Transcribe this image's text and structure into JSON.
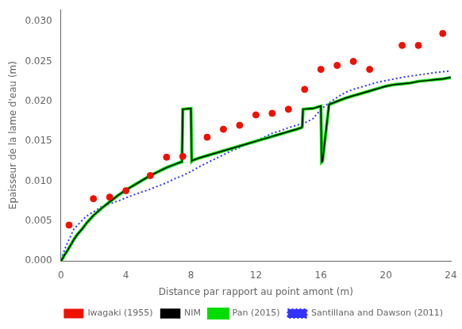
{
  "chart_data": {
    "type": "line",
    "xlabel": "Distance par rapport au point amont (m)",
    "ylabel": "Epaisseur de la lame d'eau (m)",
    "xlim": [
      0,
      24
    ],
    "ylim": [
      0.0,
      0.0315
    ],
    "xticks": [
      0,
      4,
      8,
      12,
      16,
      20,
      24
    ],
    "yticks": [
      {
        "value": 0.0,
        "label": "0.000"
      },
      {
        "value": 0.005,
        "label": "0.005"
      },
      {
        "value": 0.01,
        "label": "0.010"
      },
      {
        "value": 0.015,
        "label": "0.015"
      },
      {
        "value": 0.02,
        "label": "0.020"
      },
      {
        "value": 0.025,
        "label": "0.025"
      },
      {
        "value": 0.03,
        "label": "0.030"
      }
    ],
    "grid": false,
    "legend": "lower right",
    "series": [
      {
        "name": "Santillana and Dawson (2011)",
        "type": "line",
        "line_style": "dotted",
        "color": "#3333ff",
        "x": [
          0.0,
          0.3,
          0.8,
          1.5,
          2.5,
          3.5,
          4.5,
          5.5,
          6.5,
          7.0,
          7.5,
          8.0,
          8.5,
          9.0,
          9.5,
          10.0,
          10.5,
          11.0,
          11.5,
          12.0,
          12.5,
          13.0,
          13.5,
          14.0,
          14.5,
          15.0,
          15.5,
          16.0,
          16.5,
          17.0,
          17.5,
          18.0,
          18.5,
          19.0,
          19.5,
          20.0,
          21.0,
          22.0,
          23.0,
          24.0
        ],
        "values": [
          0.0002,
          0.0018,
          0.004,
          0.0055,
          0.0068,
          0.0075,
          0.0083,
          0.009,
          0.0098,
          0.0103,
          0.0107,
          0.0112,
          0.0118,
          0.0123,
          0.0128,
          0.0133,
          0.0138,
          0.0142,
          0.0147,
          0.0151,
          0.0155,
          0.016,
          0.0163,
          0.0167,
          0.017,
          0.0173,
          0.0178,
          0.019,
          0.0198,
          0.0205,
          0.0211,
          0.0215,
          0.0218,
          0.0221,
          0.0224,
          0.0226,
          0.023,
          0.0233,
          0.0236,
          0.0238
        ]
      },
      {
        "name": "Iwagaki (1955)",
        "type": "scatter",
        "marker": "circle",
        "color": "#ee1100",
        "x": [
          0.5,
          2.0,
          3.0,
          4.0,
          5.5,
          6.5,
          7.5,
          9.0,
          10.0,
          11.0,
          12.0,
          13.0,
          14.0,
          15.0,
          16.0,
          17.0,
          18.0,
          19.0,
          21.0,
          22.0,
          23.5
        ],
        "values": [
          0.0045,
          0.0078,
          0.008,
          0.0088,
          0.0107,
          0.013,
          0.0131,
          0.0155,
          0.0165,
          0.017,
          0.0183,
          0.0185,
          0.019,
          0.0215,
          0.024,
          0.0245,
          0.025,
          0.024,
          0.027,
          0.027,
          0.0285
        ]
      },
      {
        "name": "Pan (2015)",
        "type": "line",
        "line_style": "solid",
        "color": "#00dd00",
        "x": [
          0.0,
          0.1,
          0.2,
          0.4,
          0.6,
          0.8,
          1.0,
          1.3,
          1.6,
          2.0,
          2.5,
          3.0,
          3.5,
          4.0,
          4.5,
          5.0,
          5.5,
          6.0,
          6.5,
          7.0,
          7.4,
          7.45,
          7.5,
          8.0,
          8.05,
          8.1,
          8.5,
          9.0,
          9.5,
          10.0,
          10.5,
          11.0,
          11.5,
          12.0,
          12.5,
          13.0,
          13.5,
          14.0,
          14.5,
          14.8,
          14.85,
          14.9,
          15.5,
          16.0,
          16.05,
          16.1,
          16.5,
          17.0,
          17.5,
          18.0,
          18.5,
          19.0,
          19.5,
          20.0,
          20.5,
          21.0,
          21.5,
          22.0,
          22.5,
          23.0,
          23.5,
          24.0
        ],
        "values": [
          0.0,
          0.0003,
          0.0007,
          0.0013,
          0.002,
          0.0027,
          0.0033,
          0.004,
          0.0048,
          0.0057,
          0.0066,
          0.0074,
          0.0082,
          0.0089,
          0.0095,
          0.0101,
          0.0107,
          0.0112,
          0.0117,
          0.0121,
          0.0124,
          0.0124,
          0.019,
          0.0191,
          0.0125,
          0.0126,
          0.0129,
          0.0132,
          0.0135,
          0.0138,
          0.0141,
          0.0144,
          0.0147,
          0.015,
          0.0153,
          0.0156,
          0.0159,
          0.0162,
          0.0165,
          0.0167,
          0.0168,
          0.019,
          0.0191,
          0.0194,
          0.0124,
          0.0125,
          0.0196,
          0.02,
          0.0204,
          0.0207,
          0.021,
          0.0213,
          0.0216,
          0.0219,
          0.0221,
          0.0222,
          0.0223,
          0.0225,
          0.0226,
          0.0227,
          0.0228,
          0.023
        ]
      },
      {
        "name": "NIM",
        "type": "line",
        "line_style": "solid",
        "color": "#000000",
        "x": [
          0.0,
          0.1,
          0.2,
          0.4,
          0.6,
          0.8,
          1.0,
          1.3,
          1.6,
          2.0,
          2.5,
          3.0,
          3.5,
          4.0,
          4.5,
          5.0,
          5.5,
          6.0,
          6.5,
          7.0,
          7.4,
          7.45,
          7.5,
          8.0,
          8.05,
          8.1,
          8.5,
          9.0,
          9.5,
          10.0,
          10.5,
          11.0,
          11.5,
          12.0,
          12.5,
          13.0,
          13.5,
          14.0,
          14.5,
          14.8,
          14.85,
          14.9,
          15.5,
          16.0,
          16.05,
          16.1,
          16.5,
          17.0,
          17.5,
          18.0,
          18.5,
          19.0,
          19.5,
          20.0,
          20.5,
          21.0,
          21.5,
          22.0,
          22.5,
          23.0,
          23.5,
          24.0
        ],
        "values": [
          0.0,
          0.0003,
          0.0007,
          0.0013,
          0.002,
          0.0027,
          0.0033,
          0.004,
          0.0048,
          0.0057,
          0.0066,
          0.0074,
          0.0082,
          0.0089,
          0.0095,
          0.0101,
          0.0107,
          0.0112,
          0.0117,
          0.0121,
          0.0124,
          0.0124,
          0.019,
          0.0191,
          0.0125,
          0.0126,
          0.0129,
          0.0132,
          0.0135,
          0.0138,
          0.0141,
          0.0144,
          0.0147,
          0.015,
          0.0153,
          0.0156,
          0.0159,
          0.0162,
          0.0165,
          0.0167,
          0.0168,
          0.019,
          0.0191,
          0.0194,
          0.0124,
          0.0125,
          0.0196,
          0.02,
          0.0204,
          0.0207,
          0.021,
          0.0213,
          0.0216,
          0.0219,
          0.0221,
          0.0222,
          0.0223,
          0.0225,
          0.0226,
          0.0227,
          0.0228,
          0.023
        ]
      }
    ]
  }
}
